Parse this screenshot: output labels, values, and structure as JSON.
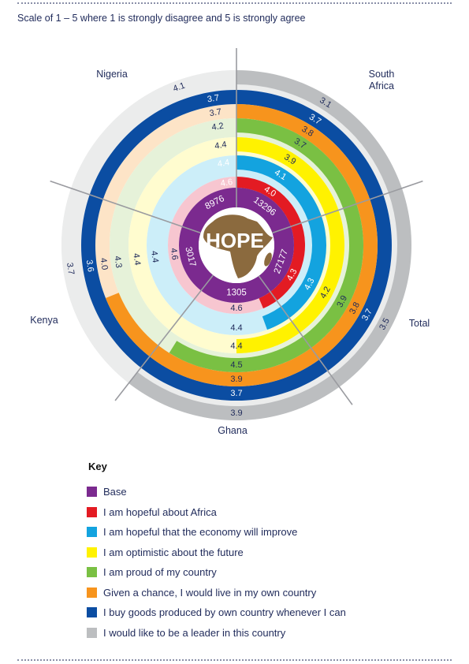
{
  "subtitle": "Scale of 1 – 5 where 1 is strongly disagree and 5 is strongly agree",
  "center_label": "HOPE",
  "key": {
    "title": "Key",
    "items": [
      {
        "label": "Base",
        "color": "#7b2a8f"
      },
      {
        "label": "I am hopeful about Africa",
        "color": "#e31b23"
      },
      {
        "label": "I am hopeful that the economy will improve",
        "color": "#13a3df"
      },
      {
        "label": "I am optimistic about the future",
        "color": "#fff200"
      },
      {
        "label": "I am proud of my country",
        "color": "#7ac043"
      },
      {
        "label": "Given a chance, I would live in my own country",
        "color": "#f7941d"
      },
      {
        "label": "I buy goods produced by own country whenever I can",
        "color": "#0b4da2"
      },
      {
        "label": "I would like to be a leader in this country",
        "color": "#bcbec0"
      }
    ]
  },
  "chart_data": {
    "type": "radial",
    "segments": [
      "Nigeria",
      "South Africa",
      "Total",
      "Ghana",
      "Kenya"
    ],
    "segment_labels": [
      "Nigeria",
      "South\nAfrica",
      "Total",
      "Ghana",
      "Kenya"
    ],
    "series": [
      {
        "name": "Base",
        "values": [
          "8976",
          "13296",
          "27177",
          "1305",
          "3017"
        ]
      },
      {
        "name": "I am hopeful about Africa",
        "values": [
          4.6,
          4.0,
          4.3,
          4.6,
          4.6
        ]
      },
      {
        "name": "I am hopeful that the economy will improve",
        "values": [
          4.4,
          4.1,
          4.3,
          4.4,
          4.4
        ]
      },
      {
        "name": "I am optimistic about the future",
        "values": [
          4.4,
          3.9,
          4.2,
          4.4,
          4.4
        ]
      },
      {
        "name": "I am proud of my country",
        "values": [
          4.2,
          3.7,
          3.9,
          4.5,
          4.3
        ]
      },
      {
        "name": "Given a chance, I would live in my own country",
        "values": [
          3.7,
          3.8,
          3.8,
          3.9,
          4.0
        ]
      },
      {
        "name": "I buy goods produced by own country whenever I can",
        "values": [
          3.7,
          3.7,
          3.7,
          3.7,
          3.6
        ]
      },
      {
        "name": "I would like to be a leader in this country",
        "values": [
          4.1,
          3.1,
          3.5,
          3.9,
          3.7
        ]
      }
    ],
    "value_labels": [
      [
        "8976",
        "13296",
        "27177",
        "1305",
        "3017"
      ],
      [
        "4.6",
        "4.0",
        "4.3",
        "4.6",
        "4.6"
      ],
      [
        "4.4",
        "4.1",
        "4.3",
        "4.4",
        "4.4"
      ],
      [
        "4.4",
        "3.9",
        "4.2",
        "4.4",
        "4.4"
      ],
      [
        "4.2",
        "3.7",
        "3.9",
        "4.5",
        "4.3"
      ],
      [
        "3.7",
        "3.8",
        "3.8",
        "3.9",
        "4.0"
      ],
      [
        "3.7",
        "3.7",
        "3.7",
        "3.7",
        "3.6"
      ],
      [
        "4.1",
        "3.1",
        "3.5",
        "3.9",
        "3.7"
      ]
    ]
  }
}
